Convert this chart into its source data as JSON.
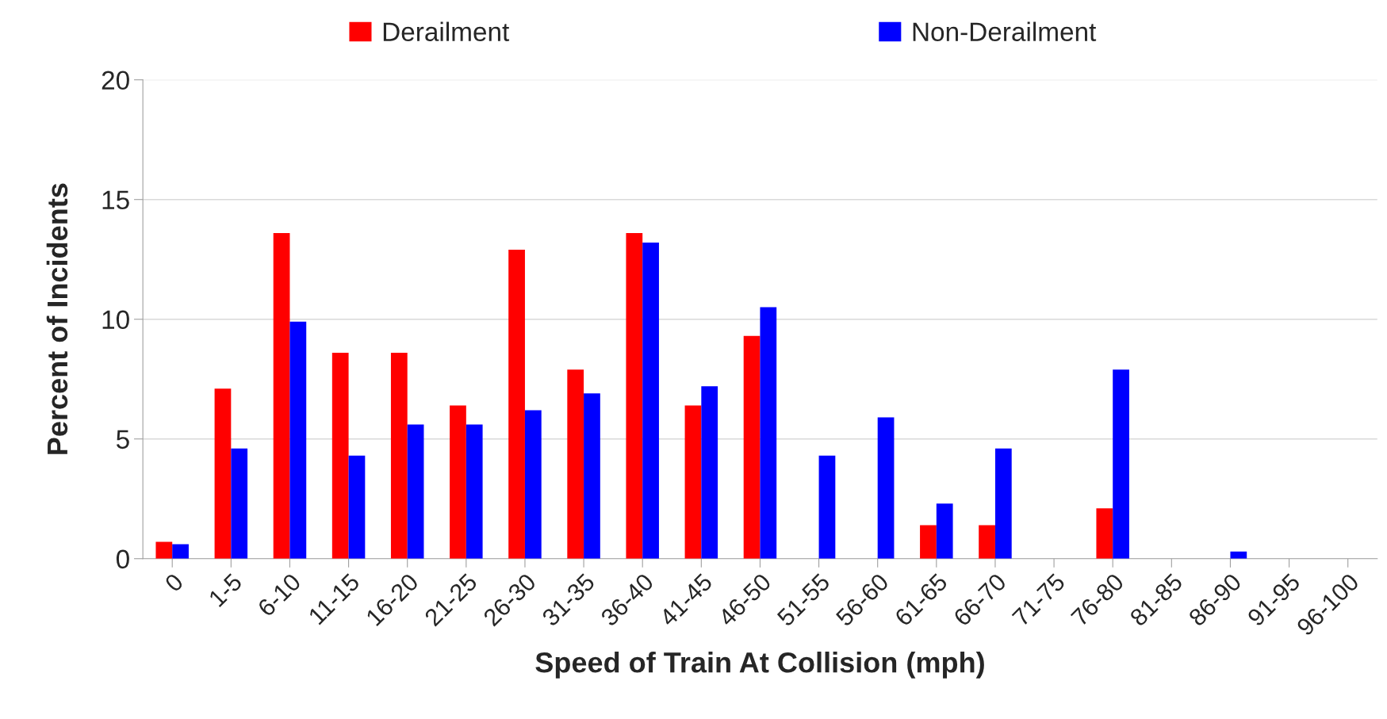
{
  "chart_data": {
    "type": "bar",
    "xlabel": "Speed of Train At Collision (mph)",
    "ylabel": "Percent of Incidents",
    "categories": [
      "0",
      "1-5",
      "6-10",
      "11-15",
      "16-20",
      "21-25",
      "26-30",
      "31-35",
      "36-40",
      "41-45",
      "46-50",
      "51-55",
      "56-60",
      "61-65",
      "66-70",
      "71-75",
      "76-80",
      "81-85",
      "86-90",
      "91-95",
      "96-100"
    ],
    "series": [
      {
        "name": "Derailment",
        "color": "#ff0000",
        "values": [
          0.7,
          7.1,
          13.6,
          8.6,
          8.6,
          6.4,
          12.9,
          7.9,
          13.6,
          6.4,
          9.3,
          0,
          0,
          1.4,
          1.4,
          0,
          2.1,
          0,
          0,
          0,
          0
        ]
      },
      {
        "name": "Non-Derailment",
        "color": "#0000ff",
        "values": [
          0.6,
          4.6,
          9.9,
          4.3,
          5.6,
          5.6,
          6.2,
          6.9,
          13.2,
          7.2,
          10.5,
          4.3,
          5.9,
          2.3,
          4.6,
          0,
          7.9,
          0,
          0.3,
          0,
          0
        ]
      }
    ],
    "ylim": [
      0,
      20
    ],
    "yticks": [
      0,
      5,
      10,
      15,
      20
    ],
    "grid": "y",
    "legend": "top"
  }
}
